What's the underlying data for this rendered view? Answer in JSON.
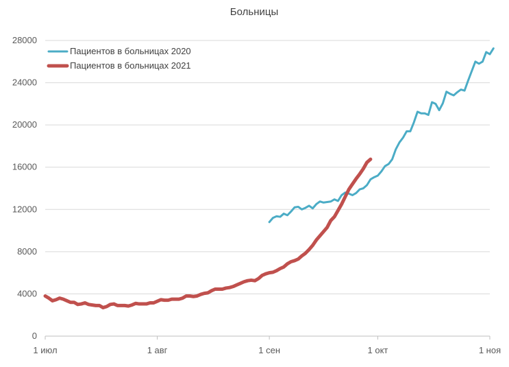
{
  "chart_data": {
    "type": "line",
    "title": "Больницы",
    "xlabel": "",
    "ylabel": "",
    "ylim": [
      0,
      28000
    ],
    "y_ticks": [
      0,
      4000,
      8000,
      12000,
      16000,
      20000,
      24000,
      28000
    ],
    "y_tick_labels": [
      "0",
      "4000",
      "8000",
      "12000",
      "16000",
      "20000",
      "24000",
      "28000"
    ],
    "x_axis": "day of year (1 июл .. 1 ноя)",
    "xlim": [
      "2021-07-01",
      "2021-11-01"
    ],
    "x_ticks": [
      "2021-07-01",
      "2021-08-01",
      "2021-09-01",
      "2021-10-01",
      "2021-11-01"
    ],
    "x_tick_labels": [
      "1 июл",
      "1 авг",
      "1 сен",
      "1 окт",
      "1 ноя"
    ],
    "grid": "horizontal",
    "legend_position": "top-left",
    "series": [
      {
        "name": "Пациентов в больницах 2020",
        "color": "#4bacc6",
        "x_start": "2021-09-01",
        "values": [
          10800,
          11200,
          11350,
          11300,
          11600,
          11450,
          11800,
          12200,
          12250,
          12000,
          12150,
          12350,
          12100,
          12500,
          12750,
          12650,
          12700,
          12750,
          12950,
          12800,
          13350,
          13600,
          13500,
          13350,
          13550,
          13900,
          14000,
          14300,
          14850,
          15050,
          15200,
          15600,
          16100,
          16300,
          16750,
          17700,
          18350,
          18800,
          19400,
          19400,
          20250,
          21250,
          21100,
          21100,
          20950,
          22150,
          22000,
          21400,
          22050,
          23150,
          22950,
          22800,
          23100,
          23350,
          23250,
          24200,
          25100,
          26000,
          25800,
          26000,
          26900,
          26700,
          27250
        ]
      },
      {
        "name": "Пациентов в больницах 2021",
        "color": "#c0504d",
        "x_start": "2021-07-01",
        "values": [
          3800,
          3600,
          3350,
          3450,
          3600,
          3500,
          3350,
          3200,
          3200,
          3000,
          3050,
          3150,
          3000,
          2950,
          2900,
          2900,
          2700,
          2800,
          3000,
          3050,
          2900,
          2900,
          2900,
          2850,
          2950,
          3100,
          3050,
          3050,
          3050,
          3150,
          3150,
          3300,
          3450,
          3400,
          3400,
          3500,
          3500,
          3500,
          3600,
          3800,
          3800,
          3750,
          3800,
          3950,
          4050,
          4100,
          4300,
          4450,
          4450,
          4450,
          4550,
          4600,
          4700,
          4850,
          5000,
          5150,
          5250,
          5300,
          5250,
          5450,
          5750,
          5900,
          6000,
          6050,
          6200,
          6400,
          6550,
          6850,
          7050,
          7150,
          7300,
          7600,
          7850,
          8200,
          8600,
          9100,
          9500,
          9900,
          10300,
          10950,
          11300,
          11900,
          12500,
          13200,
          13900,
          14400,
          14900,
          15350,
          15850,
          16450,
          16750
        ]
      }
    ]
  }
}
